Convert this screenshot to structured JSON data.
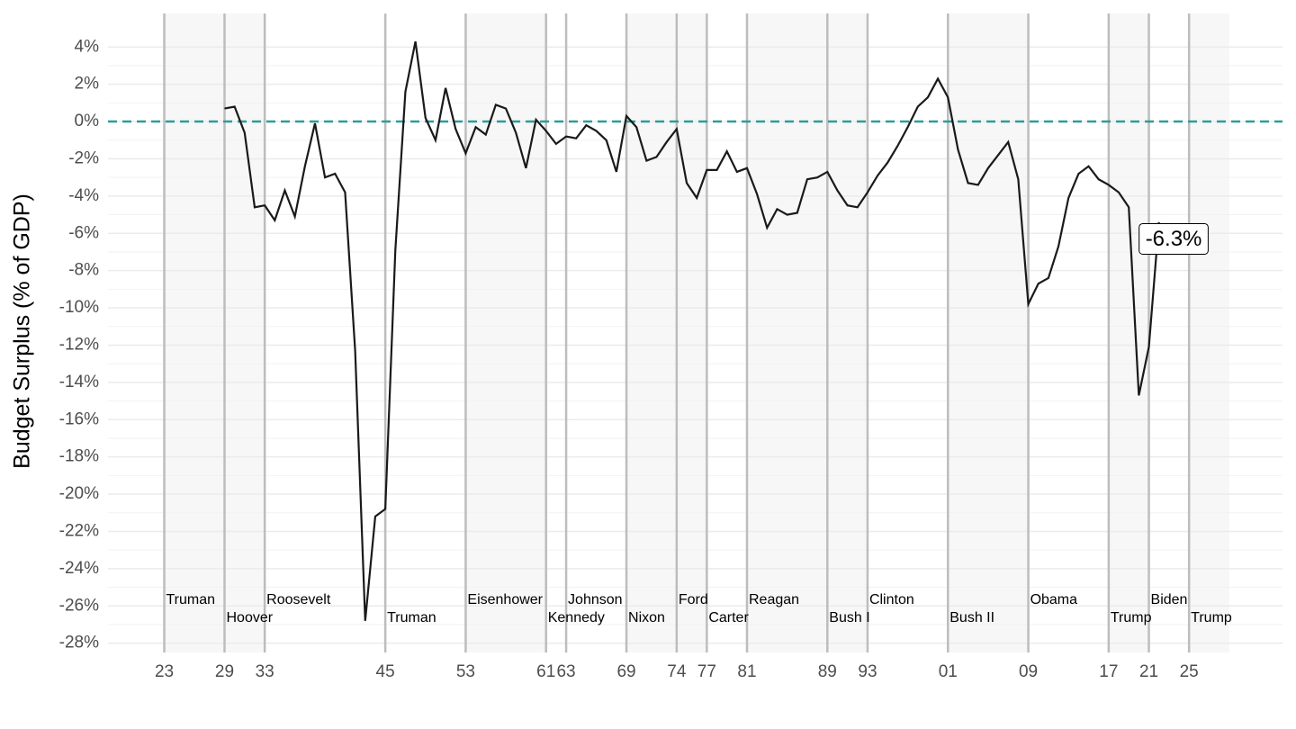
{
  "chart_data": {
    "type": "line",
    "y_label": "Budget Surplus (% of GDP)",
    "x": [
      1929,
      1930,
      1931,
      1932,
      1933,
      1934,
      1935,
      1936,
      1937,
      1938,
      1939,
      1940,
      1941,
      1942,
      1943,
      1944,
      1945,
      1946,
      1947,
      1948,
      1949,
      1950,
      1951,
      1952,
      1953,
      1954,
      1955,
      1956,
      1957,
      1958,
      1959,
      1960,
      1961,
      1962,
      1963,
      1964,
      1965,
      1966,
      1967,
      1968,
      1969,
      1970,
      1971,
      1972,
      1973,
      1974,
      1975,
      1976,
      1977,
      1978,
      1979,
      1980,
      1981,
      1982,
      1983,
      1984,
      1985,
      1986,
      1987,
      1988,
      1989,
      1990,
      1991,
      1992,
      1993,
      1994,
      1995,
      1996,
      1997,
      1998,
      1999,
      2000,
      2001,
      2002,
      2003,
      2004,
      2005,
      2006,
      2007,
      2008,
      2009,
      2010,
      2011,
      2012,
      2013,
      2014,
      2015,
      2016,
      2017,
      2018,
      2019,
      2020,
      2021,
      2022
    ],
    "values": [
      0.7,
      0.8,
      -0.6,
      -4.6,
      -4.5,
      -5.3,
      -3.7,
      -5.1,
      -2.4,
      -0.1,
      -3.0,
      -2.8,
      -3.8,
      -12.3,
      -26.8,
      -21.2,
      -20.8,
      -6.9,
      1.6,
      4.3,
      0.2,
      -1.0,
      1.8,
      -0.4,
      -1.7,
      -0.3,
      -0.7,
      0.9,
      0.7,
      -0.6,
      -2.5,
      0.1,
      -0.5,
      -1.2,
      -0.8,
      -0.9,
      -0.2,
      -0.5,
      -1.0,
      -2.7,
      0.3,
      -0.3,
      -2.1,
      -1.9,
      -1.1,
      -0.4,
      -3.3,
      -4.1,
      -2.6,
      -2.6,
      -1.6,
      -2.7,
      -2.5,
      -3.9,
      -5.7,
      -4.7,
      -5.0,
      -4.9,
      -3.1,
      -3.0,
      -2.7,
      -3.7,
      -4.5,
      -4.6,
      -3.8,
      -2.9,
      -2.2,
      -1.3,
      -0.3,
      0.8,
      1.3,
      2.3,
      1.3,
      -1.5,
      -3.3,
      -3.4,
      -2.5,
      -1.8,
      -1.1,
      -3.1,
      -9.8,
      -8.7,
      -8.4,
      -6.7,
      -4.1,
      -2.8,
      -2.4,
      -3.1,
      -3.4,
      -3.8,
      -4.6,
      -14.7,
      -12.1,
      -5.4
    ],
    "color": "#1a1a1a",
    "xlim": [
      1917.4,
      2034.3
    ],
    "ylim": [
      -28.5,
      5.8
    ],
    "xticks": [
      {
        "value": 1923,
        "label": "23"
      },
      {
        "value": 1929,
        "label": "29"
      },
      {
        "value": 1933,
        "label": "33"
      },
      {
        "value": 1945,
        "label": "45"
      },
      {
        "value": 1953,
        "label": "53"
      },
      {
        "value": 1961,
        "label": "61"
      },
      {
        "value": 1963,
        "label": "63"
      },
      {
        "value": 1969,
        "label": "69"
      },
      {
        "value": 1974,
        "label": "74"
      },
      {
        "value": 1977,
        "label": "77"
      },
      {
        "value": 1981,
        "label": "81"
      },
      {
        "value": 1989,
        "label": "89"
      },
      {
        "value": 1993,
        "label": "93"
      },
      {
        "value": 2001,
        "label": "01"
      },
      {
        "value": 2009,
        "label": "09"
      },
      {
        "value": 2017,
        "label": "17"
      },
      {
        "value": 2021,
        "label": "21"
      },
      {
        "value": 2025,
        "label": "25"
      }
    ],
    "yticks": [
      {
        "value": 4,
        "label": "4%"
      },
      {
        "value": 2,
        "label": "2%"
      },
      {
        "value": 0,
        "label": "0%"
      },
      {
        "value": -2,
        "label": "-2%"
      },
      {
        "value": -4,
        "label": "-4%"
      },
      {
        "value": -6,
        "label": "-6%"
      },
      {
        "value": -8,
        "label": "-8%"
      },
      {
        "value": -10,
        "label": "-10%"
      },
      {
        "value": -12,
        "label": "-12%"
      },
      {
        "value": -14,
        "label": "-14%"
      },
      {
        "value": -16,
        "label": "-16%"
      },
      {
        "value": -18,
        "label": "-18%"
      },
      {
        "value": -20,
        "label": "-20%"
      },
      {
        "value": -22,
        "label": "-22%"
      },
      {
        "value": -24,
        "label": "-24%"
      },
      {
        "value": -26,
        "label": "-26%"
      },
      {
        "value": -28,
        "label": "-28%"
      }
    ],
    "grid": true,
    "reference_line": {
      "value": 0,
      "color": "#2a9d9a"
    },
    "presidents": [
      {
        "name": "Truman",
        "start": 1923,
        "end": 1929,
        "color": "#f7f7f7"
      },
      {
        "name": "Hoover",
        "start": 1929,
        "end": 1933,
        "color": "#f7f7f7"
      },
      {
        "name": "Roosevelt",
        "start": 1933,
        "end": 1945,
        "color": "#ffffff"
      },
      {
        "name": "Truman",
        "start": 1945,
        "end": 1953,
        "color": "#ffffff"
      },
      {
        "name": "Eisenhower",
        "start": 1953,
        "end": 1961,
        "color": "#f7f7f7"
      },
      {
        "name": "Kennedy",
        "start": 1961,
        "end": 1963,
        "color": "#ffffff"
      },
      {
        "name": "Johnson",
        "start": 1963,
        "end": 1969,
        "color": "#ffffff"
      },
      {
        "name": "Nixon",
        "start": 1969,
        "end": 1974,
        "color": "#f7f7f7"
      },
      {
        "name": "Ford",
        "start": 1974,
        "end": 1977,
        "color": "#f7f7f7"
      },
      {
        "name": "Carter",
        "start": 1977,
        "end": 1981,
        "color": "#ffffff"
      },
      {
        "name": "Reagan",
        "start": 1981,
        "end": 1989,
        "color": "#f7f7f7"
      },
      {
        "name": "Bush I",
        "start": 1989,
        "end": 1993,
        "color": "#f7f7f7"
      },
      {
        "name": "Clinton",
        "start": 1993,
        "end": 2001,
        "color": "#ffffff"
      },
      {
        "name": "Bush II",
        "start": 2001,
        "end": 2009,
        "color": "#f7f7f7"
      },
      {
        "name": "Obama",
        "start": 2009,
        "end": 2017,
        "color": "#ffffff"
      },
      {
        "name": "Trump",
        "start": 2017,
        "end": 2021,
        "color": "#f7f7f7"
      },
      {
        "name": "Biden",
        "start": 2021,
        "end": 2025,
        "color": "#ffffff"
      },
      {
        "name": "Trump",
        "start": 2025,
        "end": 2029,
        "color": "#f7f7f7"
      }
    ],
    "annotation": {
      "text": "-6.3%",
      "value": -6.3
    }
  }
}
